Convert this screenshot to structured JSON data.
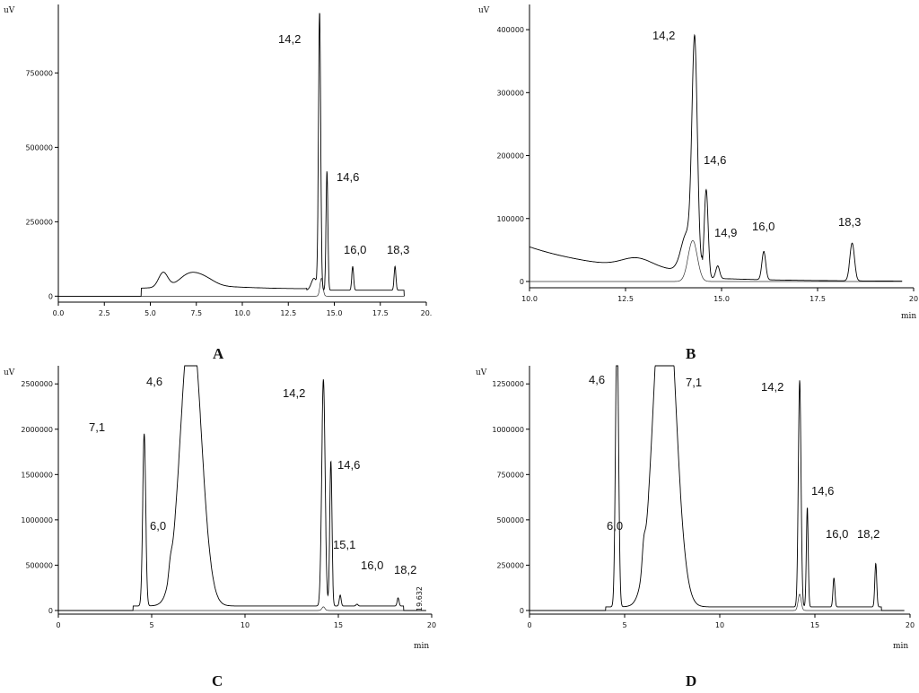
{
  "chart_data": [
    {
      "panel": "A",
      "type": "line",
      "ylabel": "uV",
      "xlabel": "",
      "xlim": [
        0,
        20
      ],
      "ylim": [
        -20000,
        980000
      ],
      "xticks": [
        "0.0",
        "2.5",
        "5.0",
        "7.5",
        "10.0",
        "12.5",
        "15.0",
        "17.5",
        "20."
      ],
      "yticks": [
        "0",
        "250000",
        "500000",
        "750000"
      ],
      "peak_labels": [
        {
          "text": "14,2",
          "x": 14.2,
          "y": 930000
        },
        {
          "text": "14,6",
          "x": 14.6,
          "y": 400000
        },
        {
          "text": "16,0",
          "x": 16.0,
          "y": 140000
        },
        {
          "text": "18,3",
          "x": 18.3,
          "y": 140000
        }
      ]
    },
    {
      "panel": "B",
      "type": "line",
      "ylabel": "uV",
      "xlabel": "min",
      "xlim": [
        10,
        20
      ],
      "ylim": [
        -10000,
        440000
      ],
      "xticks": [
        "10.0",
        "12.5",
        "15.0",
        "17.5",
        "20"
      ],
      "yticks": [
        "0",
        "100000",
        "200000",
        "300000",
        "400000"
      ],
      "peak_labels": [
        {
          "text": "14,2",
          "x": 14.2,
          "y": 410000
        },
        {
          "text": "14,6",
          "x": 14.6,
          "y": 195000
        },
        {
          "text": "14,9",
          "x": 14.9,
          "y": 70000
        },
        {
          "text": "16,0",
          "x": 16.0,
          "y": 80000
        },
        {
          "text": "18,3",
          "x": 18.3,
          "y": 85000
        }
      ]
    },
    {
      "panel": "C",
      "type": "line",
      "ylabel": "uV",
      "xlabel": "min",
      "xlim": [
        0,
        20
      ],
      "ylim": [
        -40000,
        2700000
      ],
      "xticks": [
        "0",
        "5",
        "10",
        "15",
        "20"
      ],
      "yticks": [
        "0",
        "500000",
        "1000000",
        "1500000",
        "2000000",
        "2500000"
      ],
      "peak_labels": [
        {
          "text": "4,6",
          "x": 4.6,
          "y": 1850000
        },
        {
          "text": "7,1",
          "x": 7.1,
          "y": 2500000
        },
        {
          "text": "6,0",
          "x": 6.0,
          "y": 300000
        },
        {
          "text": "14,2",
          "x": 14.2,
          "y": 2400000
        },
        {
          "text": "14,6",
          "x": 14.6,
          "y": 1600000
        },
        {
          "text": "15,1",
          "x": 15.1,
          "y": 400000
        },
        {
          "text": "16,0",
          "x": 16.0,
          "y": 150000
        },
        {
          "text": "18,2",
          "x": 18.2,
          "y": 350000
        }
      ],
      "annotation": "19.632"
    },
    {
      "panel": "D",
      "type": "line",
      "ylabel": "uV",
      "xlabel": "min",
      "xlim": [
        0,
        20
      ],
      "ylim": [
        -20000,
        1350000
      ],
      "xticks": [
        "0",
        "5",
        "10",
        "15",
        "20"
      ],
      "yticks": [
        "0",
        "250000",
        "500000",
        "750000",
        "1000000",
        "1250000"
      ],
      "peak_labels": [
        {
          "text": "4,6",
          "x": 4.6,
          "y": 1250000
        },
        {
          "text": "7,1",
          "x": 7.1,
          "y": 1250000
        },
        {
          "text": "6,0",
          "x": 6.0,
          "y": 190000
        },
        {
          "text": "14,2",
          "x": 14.2,
          "y": 1250000
        },
        {
          "text": "14,6",
          "x": 14.6,
          "y": 620000
        },
        {
          "text": "16,0",
          "x": 16.0,
          "y": 310000
        },
        {
          "text": "18,2",
          "x": 18.2,
          "y": 320000
        }
      ]
    }
  ],
  "panel_letters": [
    "A",
    "B",
    "C",
    "D"
  ]
}
